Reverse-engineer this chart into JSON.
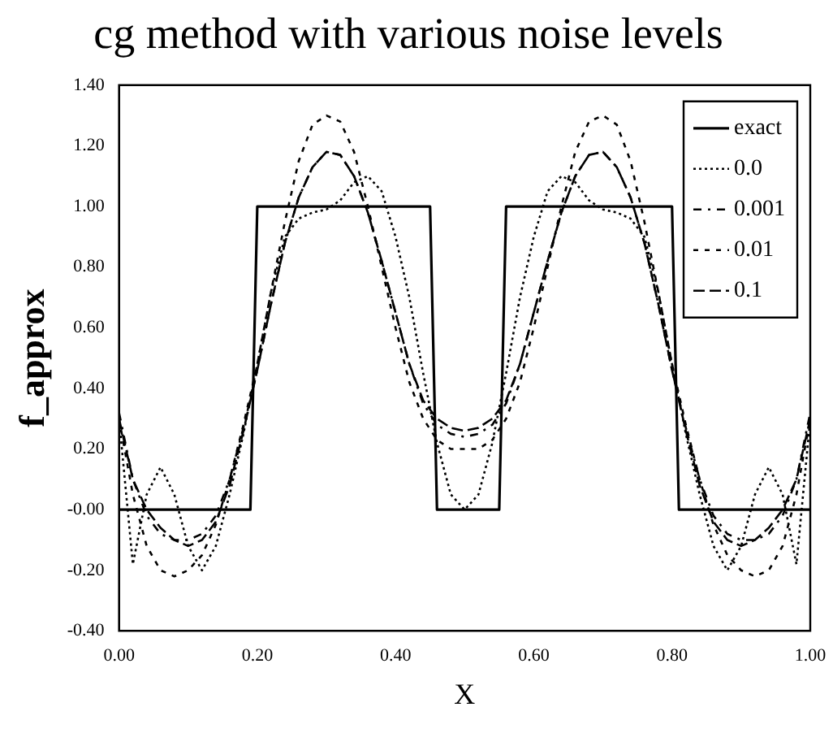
{
  "chart_data": {
    "type": "line",
    "title": "cg method with various noise levels",
    "xlabel": "X",
    "ylabel": "f_approx",
    "x": [
      0,
      0.02,
      0.04,
      0.06,
      0.08,
      0.1,
      0.12,
      0.14,
      0.16,
      0.18,
      0.2,
      0.22,
      0.24,
      0.26,
      0.28,
      0.3,
      0.32,
      0.34,
      0.36,
      0.38,
      0.4,
      0.42,
      0.44,
      0.46,
      0.48,
      0.5,
      0.52,
      0.54,
      0.56,
      0.58,
      0.6,
      0.62,
      0.64,
      0.66,
      0.68,
      0.7,
      0.72,
      0.74,
      0.76,
      0.78,
      0.8,
      0.82,
      0.84,
      0.86,
      0.88,
      0.9,
      0.92,
      0.94,
      0.96,
      0.98,
      1.0
    ],
    "series": [
      {
        "name": "exact",
        "color": "#000000",
        "line_style": "solid",
        "x": [
          0,
          0.19,
          0.2,
          0.45,
          0.46,
          0.55,
          0.56,
          0.8,
          0.81,
          1.0
        ],
        "values": [
          0,
          0,
          1,
          1,
          0,
          0,
          1,
          1,
          0,
          0
        ]
      },
      {
        "name": "0.0",
        "color": "#000000",
        "line_style": "dotted",
        "values": [
          0.3,
          -0.18,
          0.05,
          0.14,
          0.05,
          -0.12,
          -0.2,
          -0.12,
          0.05,
          0.25,
          0.48,
          0.72,
          0.9,
          0.96,
          0.98,
          0.99,
          1.02,
          1.08,
          1.1,
          1.05,
          0.9,
          0.7,
          0.45,
          0.22,
          0.05,
          0.0,
          0.05,
          0.22,
          0.45,
          0.7,
          0.9,
          1.05,
          1.1,
          1.08,
          1.02,
          0.99,
          0.98,
          0.96,
          0.9,
          0.72,
          0.48,
          0.25,
          0.05,
          -0.12,
          -0.2,
          -0.12,
          0.05,
          0.14,
          0.05,
          -0.18,
          0.3
        ]
      },
      {
        "name": "0.001",
        "color": "#000000",
        "line_style": "dashed",
        "values": [
          0.32,
          0.1,
          -0.02,
          -0.08,
          -0.1,
          -0.1,
          -0.08,
          -0.02,
          0.1,
          0.27,
          0.46,
          0.68,
          0.88,
          1.03,
          1.13,
          1.18,
          1.17,
          1.1,
          0.98,
          0.82,
          0.65,
          0.48,
          0.35,
          0.28,
          0.25,
          0.24,
          0.25,
          0.28,
          0.35,
          0.48,
          0.65,
          0.82,
          0.98,
          1.1,
          1.17,
          1.18,
          1.13,
          1.03,
          0.88,
          0.68,
          0.46,
          0.27,
          0.1,
          -0.02,
          -0.08,
          -0.1,
          -0.1,
          -0.08,
          -0.02,
          0.1,
          0.32
        ]
      },
      {
        "name": "0.01",
        "color": "#000000",
        "line_style": "dashed",
        "values": [
          0.3,
          0.05,
          -0.12,
          -0.2,
          -0.22,
          -0.2,
          -0.15,
          -0.05,
          0.1,
          0.28,
          0.48,
          0.72,
          0.95,
          1.15,
          1.27,
          1.3,
          1.28,
          1.18,
          1.0,
          0.8,
          0.6,
          0.42,
          0.3,
          0.23,
          0.2,
          0.2,
          0.2,
          0.23,
          0.3,
          0.42,
          0.6,
          0.8,
          1.0,
          1.18,
          1.28,
          1.3,
          1.27,
          1.15,
          0.95,
          0.72,
          0.48,
          0.28,
          0.1,
          -0.05,
          -0.15,
          -0.2,
          -0.22,
          -0.2,
          -0.12,
          0.05,
          0.3
        ]
      },
      {
        "name": "0.1",
        "color": "#000000",
        "line_style": "dashed",
        "values": [
          0.3,
          0.1,
          0.0,
          -0.06,
          -0.1,
          -0.12,
          -0.1,
          -0.04,
          0.08,
          0.26,
          0.46,
          0.68,
          0.88,
          1.03,
          1.13,
          1.18,
          1.17,
          1.1,
          0.98,
          0.82,
          0.65,
          0.48,
          0.36,
          0.3,
          0.27,
          0.26,
          0.27,
          0.3,
          0.36,
          0.48,
          0.65,
          0.82,
          0.98,
          1.1,
          1.17,
          1.18,
          1.13,
          1.03,
          0.88,
          0.68,
          0.46,
          0.26,
          0.08,
          -0.04,
          -0.1,
          -0.12,
          -0.1,
          -0.06,
          0.0,
          0.1,
          0.3
        ]
      }
    ],
    "xlim": [
      0,
      1
    ],
    "ylim": [
      -0.4,
      1.4
    ],
    "xticks": [
      {
        "value": 0,
        "label": "0.00"
      },
      {
        "value": 0.2,
        "label": "0.20"
      },
      {
        "value": 0.4,
        "label": "0.40"
      },
      {
        "value": 0.6,
        "label": "0.60"
      },
      {
        "value": 0.8,
        "label": "0.80"
      },
      {
        "value": 1,
        "label": "1.00"
      }
    ],
    "yticks": [
      {
        "value": -0.4,
        "label": "-0.40"
      },
      {
        "value": -0.2,
        "label": "-0.20"
      },
      {
        "value": 0,
        "label": "-0.00"
      },
      {
        "value": 0.2,
        "label": "0.20"
      },
      {
        "value": 0.4,
        "label": "0.40"
      },
      {
        "value": 0.6,
        "label": "0.60"
      },
      {
        "value": 0.8,
        "label": "0.80"
      },
      {
        "value": 1.0,
        "label": "1.00"
      },
      {
        "value": 1.2,
        "label": "1.20"
      },
      {
        "value": 1.4,
        "label": "1.40"
      }
    ],
    "grid": false,
    "legend": "top right",
    "marker": "none"
  }
}
